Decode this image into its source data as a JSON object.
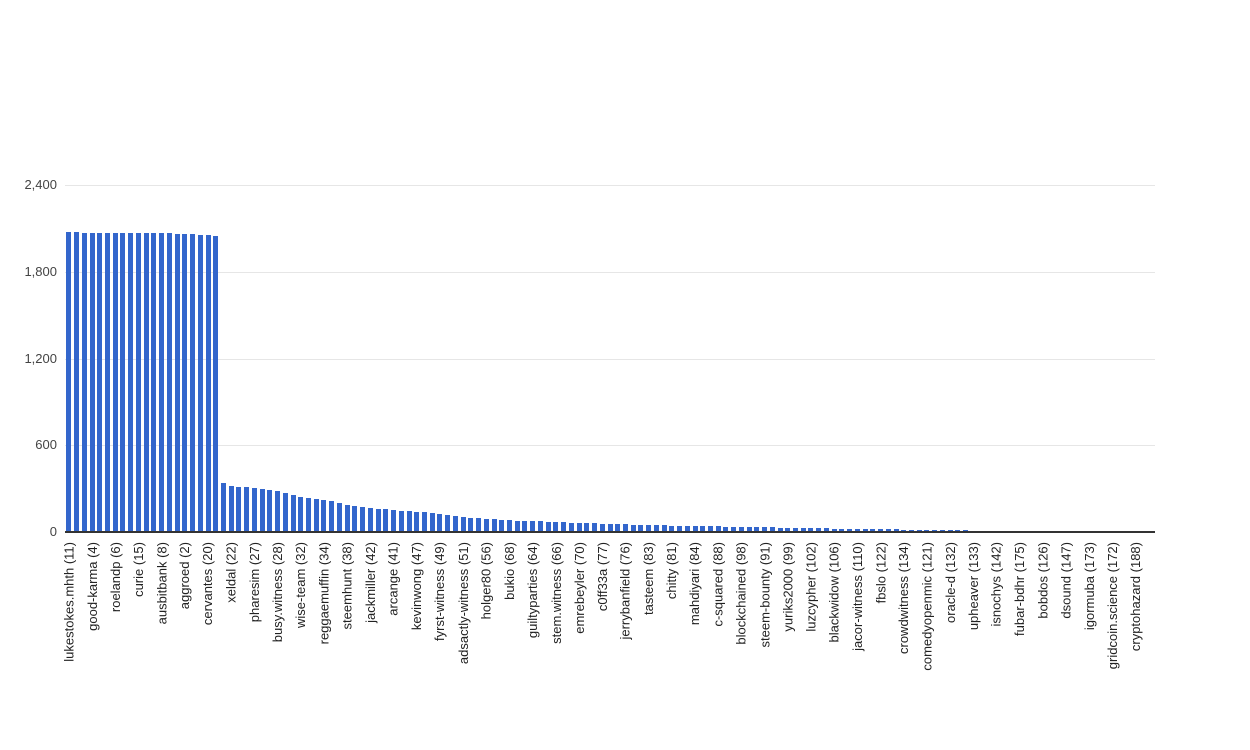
{
  "page": {
    "background": "#ffffff"
  },
  "chart_data": {
    "type": "bar",
    "title": "",
    "xlabel": "",
    "ylabel": "",
    "legend": "none",
    "grid": true,
    "bar_color": "#3366cc",
    "grid_color": "#e6e6e6",
    "baseline_color": "#333333",
    "axis_text_color": "#444444",
    "label_text_color": "#222222",
    "ylim": [
      0,
      2400
    ],
    "y_ticks": [
      {
        "value": 0,
        "label": "0"
      },
      {
        "value": 600,
        "label": "600"
      },
      {
        "value": 1200,
        "label": "1,200"
      },
      {
        "value": 1800,
        "label": "1,800"
      },
      {
        "value": 2400,
        "label": "2,400"
      }
    ],
    "bar_count": 141,
    "label_step": 3,
    "visible_labels": [
      "lukestokes.mhth (11)",
      "good-karma (4)",
      "roelandp (6)",
      "curie (15)",
      "ausbitbank (8)",
      "aggroed (2)",
      "cervantes (20)",
      "xeldal (22)",
      "pharesim (27)",
      "busy.witness (28)",
      "wise-team (32)",
      "reggaemuffin (34)",
      "steemhunt (38)",
      "jackmiller (42)",
      "arcange (41)",
      "kevinwong (47)",
      "fyrst-witness (49)",
      "adsactly-witness (51)",
      "holger80 (56)",
      "bukio (68)",
      "guiltyparties (64)",
      "stem.witness (66)",
      "emrebeyler (70)",
      "c0ff33a (77)",
      "jerrybanfield (76)",
      "tasteem (83)",
      "chitty (81)",
      "mahdiyari (84)",
      "c-squared (88)",
      "blockchained (98)",
      "steem-bounty (91)",
      "yuriks2000 (99)",
      "luzcypher (102)",
      "blackwidow (106)",
      "jacor-witness (110)",
      "fbslo (122)",
      "crowdwitness (134)",
      "comedyopenmic (121)",
      "oracle-d (132)",
      "upheaver (133)",
      "isnochys (142)",
      "fubar-bdhr (175)",
      "bobdos (126)",
      "dsound (147)",
      "igormuba (173)",
      "gridcoin.science (172)",
      "cryptohazard (188)"
    ],
    "values": [
      2072,
      2072,
      2071,
      2071,
      2071,
      2070,
      2070,
      2070,
      2069,
      2069,
      2068,
      2067,
      2066,
      2065,
      2063,
      2061,
      2059,
      2056,
      2052,
      2048,
      341,
      316,
      312,
      310,
      303,
      296,
      290,
      281,
      270,
      258,
      245,
      236,
      229,
      222,
      213,
      201,
      190,
      181,
      174,
      168,
      162,
      157,
      152,
      148,
      144,
      140,
      136,
      131,
      124,
      117,
      110,
      104,
      99,
      95,
      91,
      87,
      84,
      81,
      79,
      77,
      75,
      73,
      71,
      69,
      67,
      65,
      63,
      61,
      59,
      57,
      55,
      53,
      52,
      50,
      49,
      48,
      47,
      46,
      45,
      44,
      43,
      42,
      41,
      40,
      39,
      38,
      37,
      36,
      35,
      34,
      33,
      32,
      31,
      30,
      29,
      28,
      27,
      26,
      25,
      24,
      23,
      22,
      21,
      21,
      20,
      19,
      18,
      18,
      17,
      16,
      15,
      14,
      14,
      13,
      12,
      12,
      11,
      10,
      10,
      9,
      9,
      8,
      8,
      7,
      7,
      6,
      6,
      5,
      5,
      5,
      4,
      4,
      3,
      3,
      3,
      2,
      2,
      2,
      1,
      1,
      1
    ]
  }
}
